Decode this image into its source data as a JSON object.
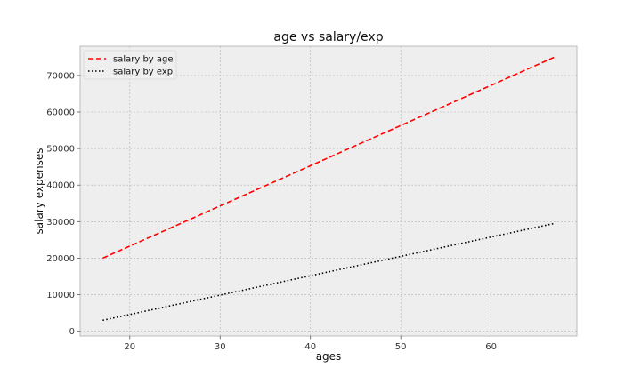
{
  "chart_data": {
    "type": "line",
    "title": "age vs salary/exp",
    "xlabel": "ages",
    "ylabel": "salary expenses",
    "xlim": [
      14.5,
      69.5
    ],
    "ylim": [
      -1300,
      78000
    ],
    "xticks": [
      20,
      30,
      40,
      50,
      60
    ],
    "yticks": [
      0,
      10000,
      20000,
      30000,
      40000,
      50000,
      60000,
      70000
    ],
    "grid": true,
    "legend_position": "upper-left",
    "series": [
      {
        "name": "salary by age",
        "color": "#ff0000",
        "style": "dashed",
        "x": [
          17,
          67
        ],
        "values": [
          20000,
          75000
        ]
      },
      {
        "name": "salary by exp",
        "color": "#000000",
        "style": "dotted",
        "x": [
          17,
          67
        ],
        "values": [
          3000,
          29500
        ]
      }
    ]
  }
}
